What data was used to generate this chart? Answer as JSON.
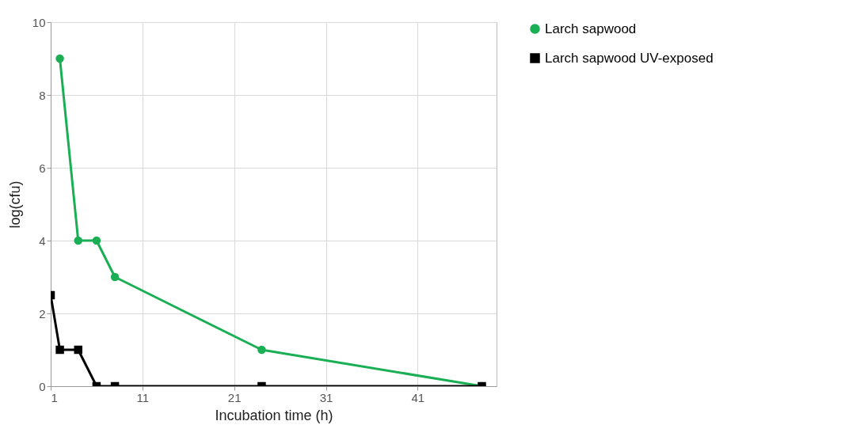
{
  "chart_data": {
    "type": "line",
    "xlabel": "Incubation time (h)",
    "ylabel": "log(cfu)",
    "x": [
      1,
      2,
      4,
      6,
      8,
      24,
      48
    ],
    "series": [
      {
        "name": "Larch sapwood",
        "color": "#1aaf54",
        "marker": "circle",
        "values": [
          null,
          9,
          4,
          4,
          3,
          1,
          0
        ]
      },
      {
        "name": "Larch sapwood UV-exposed",
        "color": "#000000",
        "marker": "square",
        "values": [
          2.5,
          1,
          1,
          0,
          0,
          0,
          0
        ]
      }
    ],
    "xlim": [
      1,
      49.6
    ],
    "xticks": [
      1,
      11,
      21,
      31,
      41
    ],
    "ylim": [
      0,
      10
    ],
    "yticks": [
      0,
      2,
      4,
      6,
      8,
      10
    ],
    "grid": true,
    "legend": "right"
  }
}
